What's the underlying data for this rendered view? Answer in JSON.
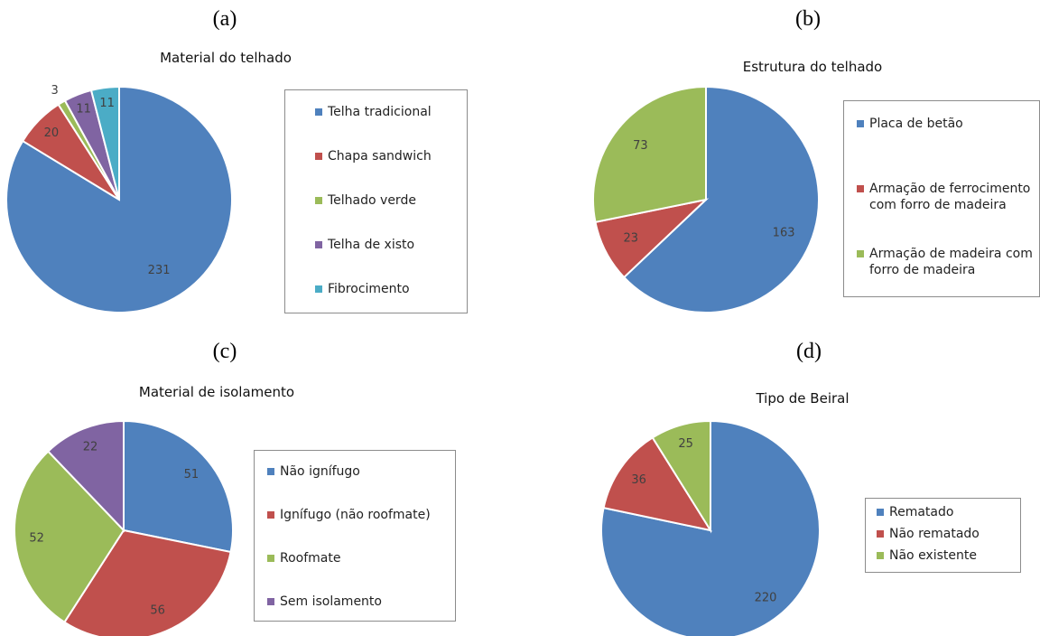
{
  "chart_data": [
    {
      "type": "pie",
      "panel_label": "(a)",
      "title": "Material do telhado",
      "categories": [
        "Telha tradicional",
        "Chapa sandwich",
        "Telhado verde",
        "Telha de xisto",
        "Fibrocimento"
      ],
      "values": [
        231,
        20,
        3,
        11,
        11
      ],
      "colors": [
        "#4f81bd",
        "#c0504d",
        "#9bbb59",
        "#8064a2",
        "#4bacc6"
      ],
      "legend_position": "right"
    },
    {
      "type": "pie",
      "panel_label": "(b)",
      "title": "Estrutura do telhado",
      "categories": [
        "Placa de betão",
        "Armação de ferrocimento\ncom forro de madeira",
        "Armação de madeira com\nforro de madeira"
      ],
      "values": [
        163,
        23,
        73
      ],
      "colors": [
        "#4f81bd",
        "#c0504d",
        "#9bbb59"
      ],
      "legend_position": "right"
    },
    {
      "type": "pie",
      "panel_label": "(c)",
      "title": "Material de isolamento",
      "categories": [
        "Não ignífugo",
        "Ignífugo (não roofmate)",
        "Roofmate",
        "Sem isolamento"
      ],
      "values": [
        51,
        56,
        52,
        22
      ],
      "colors": [
        "#4f81bd",
        "#c0504d",
        "#9bbb59",
        "#8064a2"
      ],
      "legend_position": "right"
    },
    {
      "type": "pie",
      "panel_label": "(d)",
      "title": "Tipo de Beiral",
      "categories": [
        "Rematado",
        "Não rematado",
        "Não existente"
      ],
      "values": [
        220,
        36,
        25
      ],
      "colors": [
        "#4f81bd",
        "#c0504d",
        "#9bbb59"
      ],
      "legend_position": "right"
    }
  ]
}
